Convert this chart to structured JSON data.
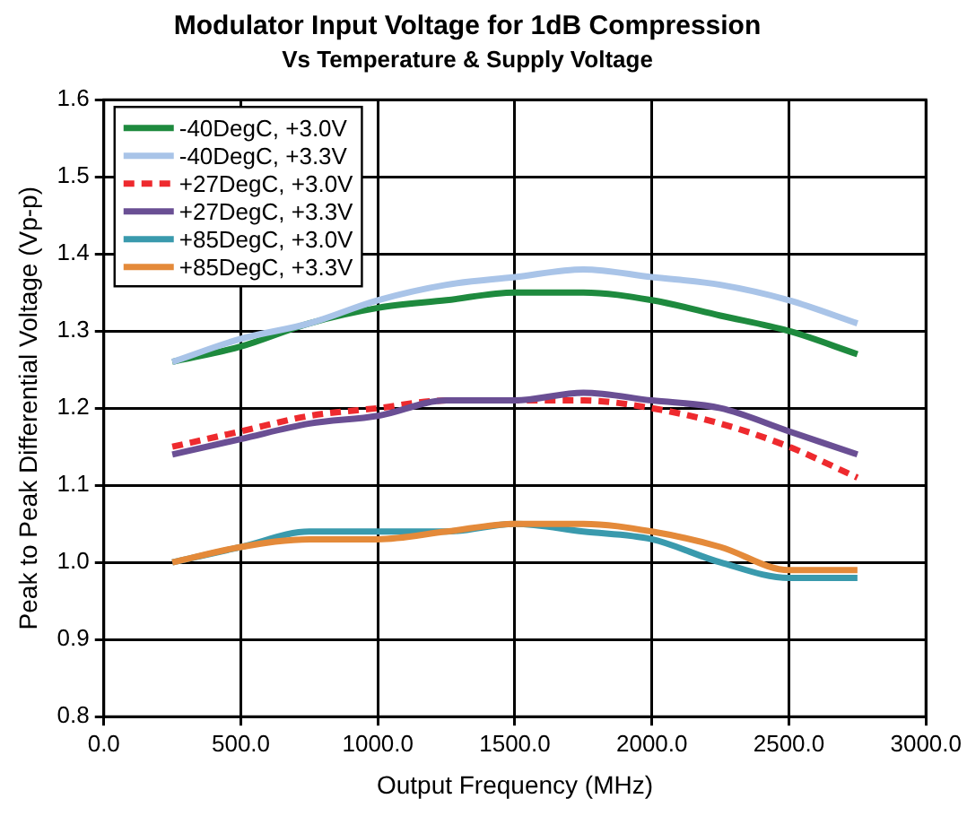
{
  "chart_data": {
    "type": "line",
    "title": "Modulator Input Voltage for 1dB Compression",
    "subtitle": "Vs Temperature & Supply Voltage",
    "xlabel": "Output Frequency (MHz)",
    "ylabel": "Peak to Peak Differential Voltage (Vp-p)",
    "x": [
      250,
      500,
      750,
      1000,
      1250,
      1500,
      1750,
      2000,
      2250,
      2500,
      2750
    ],
    "series": [
      {
        "name": "-40DegC, +3.0V",
        "color": "#1e8a3e",
        "values": [
          1.26,
          1.28,
          1.31,
          1.33,
          1.34,
          1.35,
          1.35,
          1.34,
          1.32,
          1.3,
          1.27
        ]
      },
      {
        "name": "-40DegC, +3.3V",
        "color": "#a9c4e8",
        "values": [
          1.26,
          1.29,
          1.31,
          1.34,
          1.36,
          1.37,
          1.38,
          1.37,
          1.36,
          1.34,
          1.31
        ]
      },
      {
        "name": "+27DegC, +3.0V",
        "color": "#ee2a2e",
        "line_style": "dashed",
        "values": [
          1.15,
          1.17,
          1.19,
          1.2,
          1.21,
          1.21,
          1.21,
          1.2,
          1.18,
          1.15,
          1.11
        ]
      },
      {
        "name": "+27DegC, +3.3V",
        "color": "#6a4f94",
        "values": [
          1.14,
          1.16,
          1.18,
          1.19,
          1.21,
          1.21,
          1.22,
          1.21,
          1.2,
          1.17,
          1.14
        ]
      },
      {
        "name": "+85DegC, +3.0V",
        "color": "#3a9aad",
        "values": [
          1.0,
          1.02,
          1.04,
          1.04,
          1.04,
          1.05,
          1.04,
          1.03,
          1.0,
          0.98,
          0.98
        ]
      },
      {
        "name": "+85DegC, +3.3V",
        "color": "#e48a3a",
        "values": [
          1.0,
          1.02,
          1.03,
          1.03,
          1.04,
          1.05,
          1.05,
          1.04,
          1.02,
          0.99,
          0.99
        ]
      }
    ],
    "xlim": [
      0,
      3000
    ],
    "xticks": [
      {
        "value": 0,
        "label": "0.0"
      },
      {
        "value": 500,
        "label": "500.0"
      },
      {
        "value": 1000,
        "label": "1000.0"
      },
      {
        "value": 1500,
        "label": "1500.0"
      },
      {
        "value": 2000,
        "label": "2000.0"
      },
      {
        "value": 2500,
        "label": "2500.0"
      },
      {
        "value": 3000,
        "label": "3000.0"
      }
    ],
    "ylim": [
      0.8,
      1.6
    ],
    "yticks": [
      {
        "value": 0.8,
        "label": "0.8"
      },
      {
        "value": 0.9,
        "label": "0.9"
      },
      {
        "value": 1,
        "label": "1.0"
      },
      {
        "value": 1.1,
        "label": "1.1"
      },
      {
        "value": 1.2,
        "label": "1.2"
      },
      {
        "value": 1.3,
        "label": "1.3"
      },
      {
        "value": 1.4,
        "label": "1.4"
      },
      {
        "value": 1.5,
        "label": "1.5"
      },
      {
        "value": 1.6,
        "label": "1.6"
      }
    ],
    "grid": true,
    "legend": "top left",
    "marker": "none",
    "line_style": "solid"
  }
}
